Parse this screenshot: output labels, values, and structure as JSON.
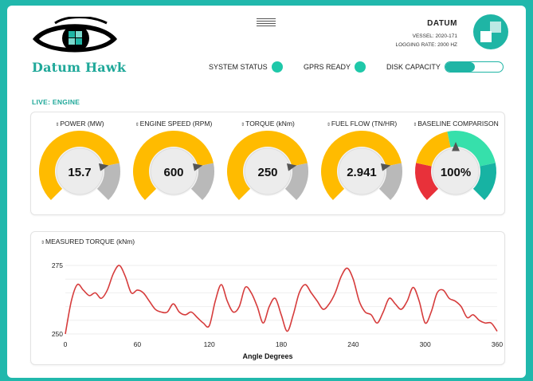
{
  "brand": {
    "name": "Datum Hawk"
  },
  "header": {
    "device_name": "DATUM",
    "vessel": "VESSEL: 2020-171",
    "logging_rate": "LOGGING RATE: 2000 HZ"
  },
  "status": {
    "system_status_label": "SYSTEM STATUS",
    "gprs_label": "GPRS READY",
    "disk_label": "DISK CAPACITY",
    "disk_fill_fraction": 0.52
  },
  "section": {
    "label": "LIVE: ENGINE"
  },
  "colors": {
    "accent": "#1fb5a5",
    "gauge_fill": "#ffbb00",
    "gauge_rest": "#b9b9b9",
    "status_dot": "#1fc8a9",
    "line": "#d63c3c"
  },
  "gauges": [
    {
      "title": "POWER (MW)",
      "value": "15.7",
      "fraction": 0.79
    },
    {
      "title": "ENGINE SPEED (RPM)",
      "value": "600",
      "fraction": 0.79
    },
    {
      "title": "TORQUE (kNm)",
      "value": "250",
      "fraction": 0.79
    },
    {
      "title": "FUEL FLOW (TN/HR)",
      "value": "2.941",
      "fraction": 0.79
    },
    {
      "title": "BASELINE COMPARISON",
      "value": "100%",
      "fraction": 0.5
    }
  ],
  "chart_data": {
    "type": "line",
    "title": "MEASURED TORQUE (kNm)",
    "xlabel": "Angle Degrees",
    "ylabel": "",
    "xlim": [
      0,
      360
    ],
    "ylim": [
      250,
      275
    ],
    "x_ticks": [
      0,
      60,
      120,
      180,
      240,
      300,
      360
    ],
    "y_ticks": [
      250,
      275
    ],
    "grid": "horizontal",
    "series": [
      {
        "x": [
          0,
          5,
          10,
          15,
          20,
          25,
          30,
          35,
          40,
          45,
          50,
          55,
          60,
          65,
          70,
          75,
          80,
          85,
          90,
          95,
          100,
          105,
          110,
          115,
          120,
          125,
          130,
          135,
          140,
          145,
          150,
          155,
          160,
          165,
          170,
          175,
          180,
          185,
          190,
          195,
          200,
          205,
          210,
          215,
          220,
          225,
          230,
          235,
          240,
          245,
          250,
          255,
          260,
          265,
          270,
          275,
          280,
          285,
          290,
          295,
          300,
          305,
          310,
          315,
          320,
          325,
          330,
          335,
          340,
          345,
          350,
          355,
          360
        ],
        "y": [
          250,
          262,
          268,
          266,
          264,
          265,
          263,
          266,
          272,
          275,
          271,
          265,
          266,
          265,
          262,
          259,
          258,
          258,
          261,
          258,
          257,
          258,
          256,
          254,
          253,
          262,
          268,
          262,
          258,
          260,
          267,
          265,
          260,
          254,
          260,
          263,
          257,
          251,
          257,
          265,
          268,
          265,
          262,
          259,
          261,
          265,
          271,
          274,
          270,
          262,
          258,
          257,
          254,
          258,
          263,
          261,
          259,
          262,
          267,
          262,
          254,
          258,
          265,
          266,
          263,
          262,
          260,
          256,
          257,
          255,
          254,
          254,
          251
        ]
      }
    ]
  }
}
